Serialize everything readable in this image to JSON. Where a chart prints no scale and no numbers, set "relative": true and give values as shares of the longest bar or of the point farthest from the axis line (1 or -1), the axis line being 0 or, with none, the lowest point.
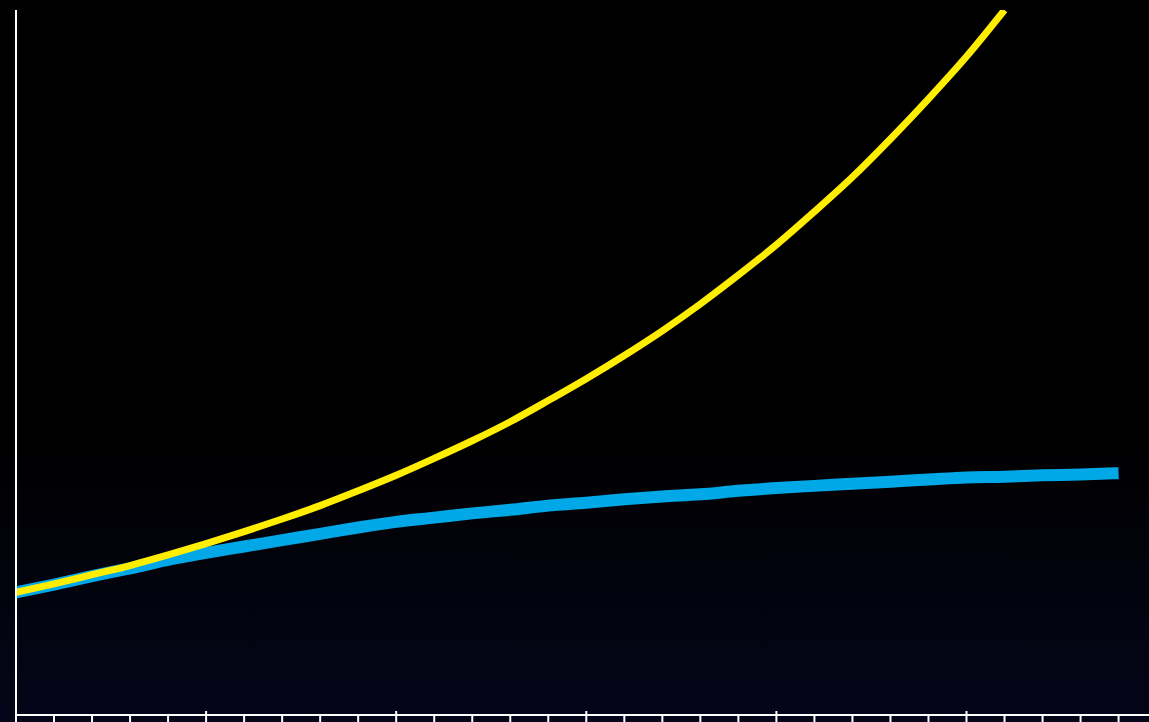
{
  "chart_data": {
    "type": "line",
    "relative": true,
    "tick_labels": false,
    "categories": [
      null,
      null,
      null,
      null,
      null,
      null,
      null,
      null,
      null,
      null,
      null,
      null,
      null,
      null,
      null,
      null,
      null,
      null,
      null,
      null,
      null,
      null,
      null,
      null,
      null,
      null,
      null,
      null,
      null,
      null
    ],
    "series": [
      {
        "color": "#00a8e8",
        "values": [
          0.174,
          0.185,
          0.197,
          0.208,
          0.22,
          0.23,
          0.239,
          0.248,
          0.257,
          0.266,
          0.274,
          0.28,
          0.286,
          0.291,
          0.297,
          0.301,
          0.306,
          0.31,
          0.313,
          0.318,
          0.322,
          0.325,
          0.328,
          0.331,
          0.334,
          0.337,
          0.338,
          0.34,
          0.341,
          0.343
        ]
      },
      {
        "color": "#ffee00",
        "values": [
          0.174,
          0.186,
          0.199,
          0.212,
          0.227,
          0.243,
          0.26,
          0.278,
          0.297,
          0.318,
          0.34,
          0.364,
          0.389,
          0.416,
          0.446,
          0.477,
          0.51,
          0.545,
          0.583,
          0.624,
          0.667,
          0.714,
          0.763,
          0.817,
          0.874,
          0.934,
          1,
          null,
          null,
          null
        ]
      }
    ]
  }
}
